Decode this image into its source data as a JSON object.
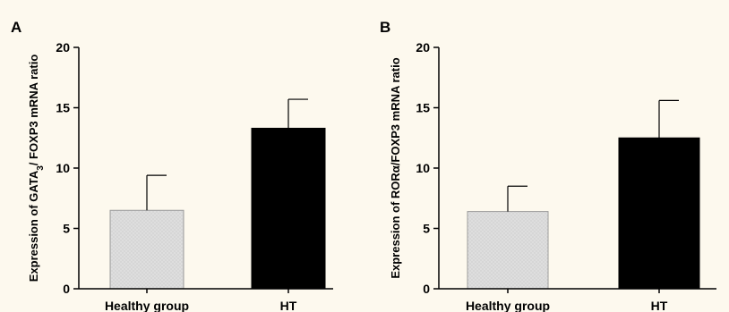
{
  "chart_data": [
    {
      "type": "bar",
      "panel": "A",
      "categories": [
        "Healthy group",
        "HT"
      ],
      "values": [
        6.5,
        13.3
      ],
      "errors": [
        2.9,
        2.4
      ],
      "colors": [
        "#d9d9d9",
        "#000000"
      ],
      "ylabel_parts": {
        "before": "Expression of GATA",
        "sub": "3",
        "after": "/ FOXP3 mRNA ratio"
      },
      "ylim": [
        0,
        20
      ],
      "yticks": [
        0,
        5,
        10,
        15,
        20
      ],
      "grid": false
    },
    {
      "type": "bar",
      "panel": "B",
      "categories": [
        "Healthy group",
        "HT"
      ],
      "values": [
        6.4,
        12.5
      ],
      "errors": [
        2.1,
        3.1
      ],
      "colors": [
        "#d9d9d9",
        "#000000"
      ],
      "ylabel_parts": {
        "before": "Expression of RORα/FOXP3 mRNA ratio",
        "sub": "",
        "after": ""
      },
      "ylim": [
        0,
        20
      ],
      "yticks": [
        0,
        5,
        10,
        15,
        20
      ],
      "grid": false
    }
  ]
}
